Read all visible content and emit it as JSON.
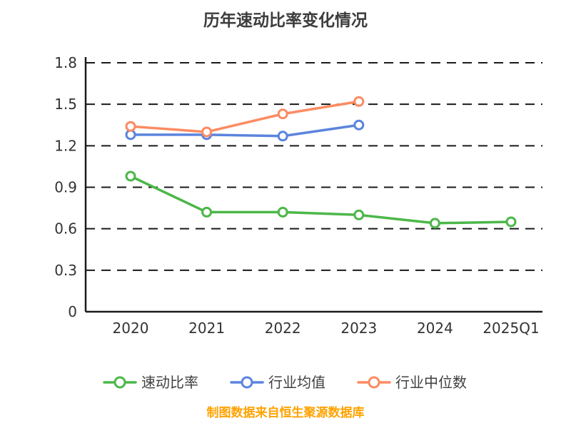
{
  "chart_data": {
    "type": "line",
    "title": "历年速动比率变化情况",
    "categories": [
      "2020",
      "2021",
      "2022",
      "2023",
      "2024",
      "2025Q1"
    ],
    "series": [
      {
        "name": "速动比率",
        "color": "#4cb749",
        "values": [
          0.98,
          0.72,
          0.72,
          0.7,
          0.64,
          0.65
        ]
      },
      {
        "name": "行业均值",
        "color": "#5b84dd",
        "values": [
          1.28,
          1.28,
          1.27,
          1.35,
          null,
          null
        ]
      },
      {
        "name": "行业中位数",
        "color": "#fc8b62",
        "values": [
          1.34,
          1.3,
          1.43,
          1.52,
          null,
          null
        ]
      }
    ],
    "ylim": [
      0,
      1.8
    ],
    "yticks": [
      0,
      0.3,
      0.6,
      0.9,
      1.2,
      1.5,
      1.8
    ],
    "grid": "horizontal-dashed",
    "legend_position": "bottom",
    "marker": "circle-white-fill"
  },
  "footer": {
    "source_note": "制图数据来自恒生聚源数据库"
  }
}
